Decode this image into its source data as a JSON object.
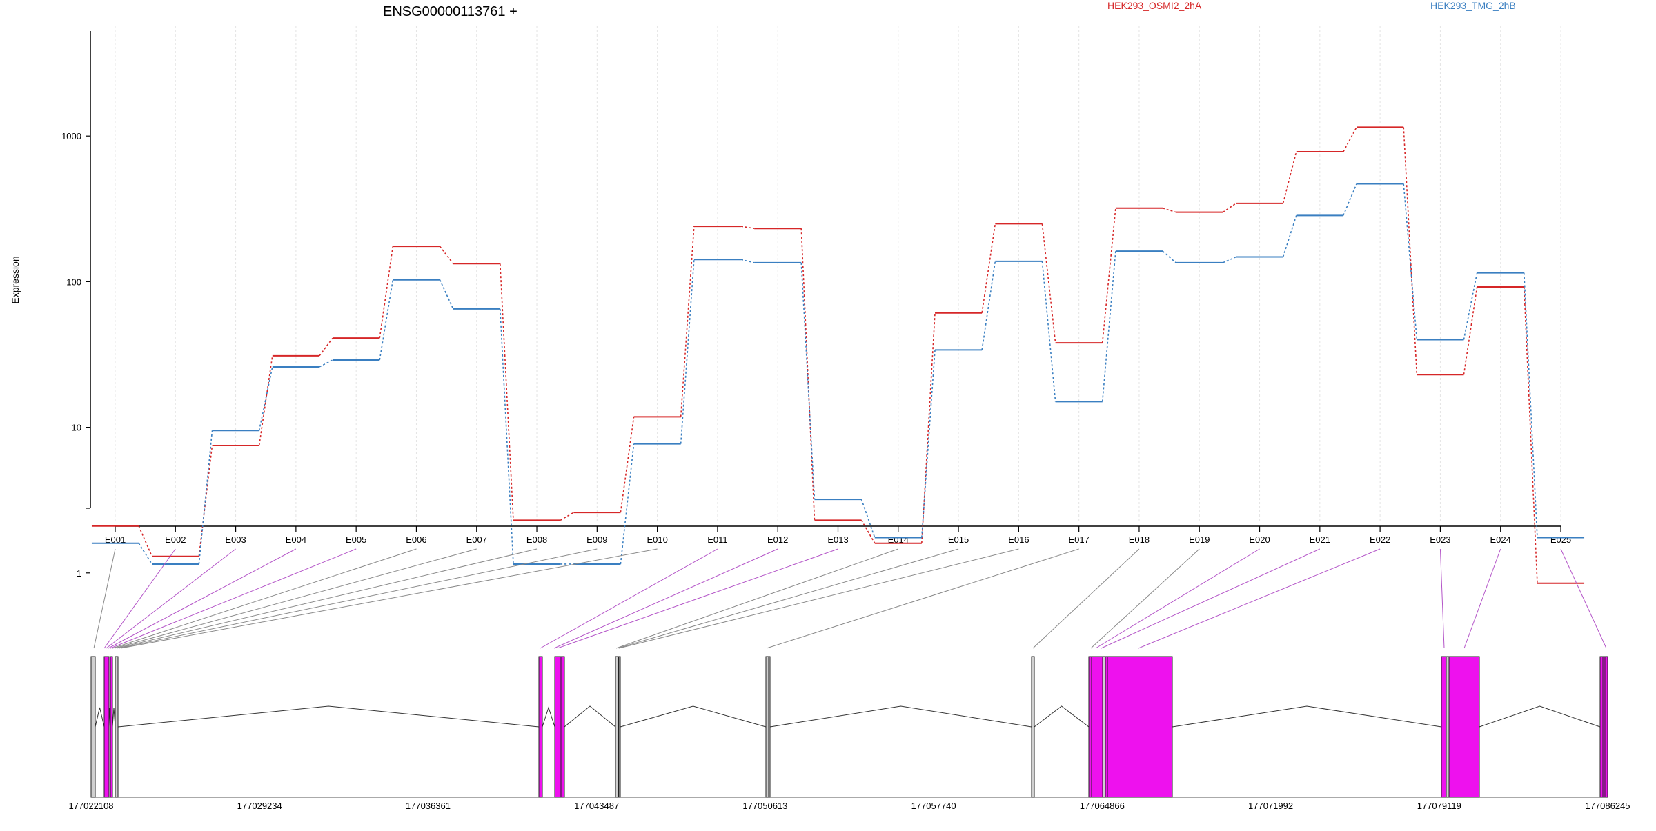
{
  "chart_data": {
    "type": "line",
    "title": "ENSG00000113761 +",
    "ylabel": "Expression",
    "xlabel": "",
    "y_scale": "log",
    "y_ticks": [
      1,
      10,
      100,
      1000
    ],
    "y_tick_labels": [
      "1",
      "10",
      "100",
      "1000"
    ],
    "categories": [
      "E001",
      "E002",
      "E003",
      "E004",
      "E005",
      "E006",
      "E007",
      "E008",
      "E009",
      "E010",
      "E011",
      "E012",
      "E013",
      "E014",
      "E015",
      "E016",
      "E017",
      "E018",
      "E019",
      "E020",
      "E021",
      "E022",
      "E023",
      "E024",
      "E025"
    ],
    "series": [
      {
        "name": "HEK293_OSMI2_2hA",
        "color": "#d62728",
        "values": [
          2.1,
          1.3,
          7.5,
          31,
          41,
          175,
          133,
          2.3,
          2.6,
          11.8,
          240,
          232,
          2.3,
          1.6,
          61,
          250,
          38,
          320,
          300,
          345,
          780,
          1150,
          23,
          92,
          0.85
        ]
      },
      {
        "name": "HEK293_TMG_2hB",
        "color": "#3a7fc1",
        "values": [
          1.6,
          1.15,
          9.5,
          26,
          29,
          103,
          65,
          1.15,
          1.15,
          7.7,
          142,
          135,
          3.2,
          1.75,
          34,
          138,
          15,
          162,
          135,
          148,
          285,
          470,
          40,
          115,
          1.75
        ]
      }
    ],
    "gene_model": {
      "coordinate_labels": [
        "177022108",
        "177029234",
        "177036361",
        "177043487",
        "177050613",
        "177057740",
        "177064866",
        "177071992",
        "177079119",
        "177086245"
      ],
      "exon_colors": {
        "differential": "#ee11ee",
        "normal": "#d0d0d0"
      },
      "exon_flags": [
        false,
        true,
        true,
        true,
        true,
        false,
        false,
        false,
        false,
        false,
        true,
        true,
        true,
        false,
        false,
        false,
        false,
        false,
        false,
        true,
        true,
        true,
        true,
        true,
        true
      ]
    }
  }
}
